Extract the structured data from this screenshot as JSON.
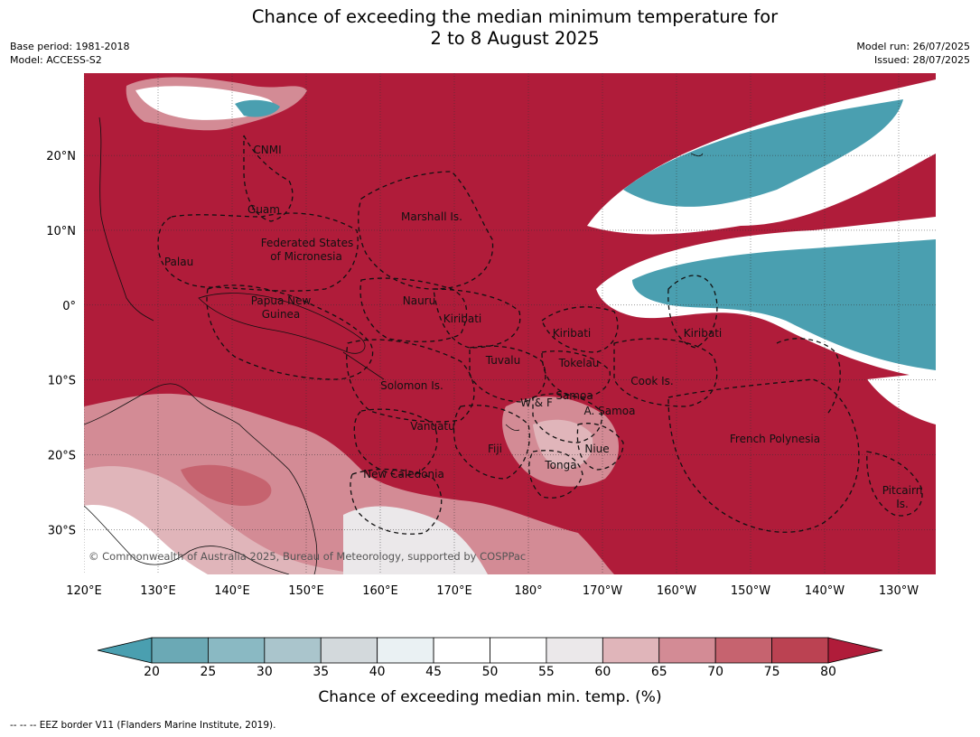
{
  "header": {
    "title_line1": "Chance of exceeding the median minimum temperature for",
    "title_line2": "2 to 8 August 2025",
    "base_period": "Base period: 1981-2018",
    "model": "Model: ACCESS-S2",
    "model_run": "Model run: 26/07/2025",
    "issued": "Issued: 28/07/2025"
  },
  "map": {
    "lon_range": [
      120,
      235
    ],
    "lat_range": [
      -36,
      31
    ],
    "lon_ticks": [
      "120°E",
      "130°E",
      "140°E",
      "150°E",
      "160°E",
      "170°E",
      "180°",
      "170°W",
      "160°W",
      "150°W",
      "140°W",
      "130°W"
    ],
    "lat_ticks": [
      "20°N",
      "10°N",
      "0°",
      "10°S",
      "20°S",
      "30°S"
    ],
    "copyright": "© Commonwealth of Australia 2025, Bureau of Meteorology, supported by COSPPac",
    "regions": [
      {
        "name": "CNMI"
      },
      {
        "name": "Guam"
      },
      {
        "name": "Marshall Is."
      },
      {
        "name": "Federated States"
      },
      {
        "name": "of Micronesia"
      },
      {
        "name": "Palau"
      },
      {
        "name": "Papua New"
      },
      {
        "name": "Guinea"
      },
      {
        "name": "Nauru"
      },
      {
        "name": "Kiribati"
      },
      {
        "name": "Kiribati"
      },
      {
        "name": "Kiribati"
      },
      {
        "name": "Tuvalu"
      },
      {
        "name": "Tokelau"
      },
      {
        "name": "Cook Is."
      },
      {
        "name": "Solomon Is."
      },
      {
        "name": "W & F"
      },
      {
        "name": "Samoa"
      },
      {
        "name": "A. Samoa"
      },
      {
        "name": "Vanuatu"
      },
      {
        "name": "Fiji"
      },
      {
        "name": "Niue"
      },
      {
        "name": "Tonga"
      },
      {
        "name": "French Polynesia"
      },
      {
        "name": "New Caledonia"
      },
      {
        "name": "Pitcairn"
      },
      {
        "name": "Is."
      }
    ]
  },
  "colorbar": {
    "ticks": [
      "20",
      "25",
      "30",
      "35",
      "40",
      "45",
      "50",
      "55",
      "60",
      "65",
      "70",
      "75",
      "80"
    ],
    "colors": [
      "#6ba9b5",
      "#8ab9c3",
      "#aac5cc",
      "#d3d9dc",
      "#eaf1f3",
      "#ffffff",
      "#ffffff",
      "#ebe8ea",
      "#e0b5ba",
      "#d38b95",
      "#c6636f",
      "#bb4252"
    ],
    "under_color": "#4a9fb0",
    "over_color": "#b01c3a",
    "label": "Chance of exceeding median min. temp. (%)"
  },
  "footnote": "--  --  -- EEZ border V11 (Flanders Marine Institute, 2019)."
}
